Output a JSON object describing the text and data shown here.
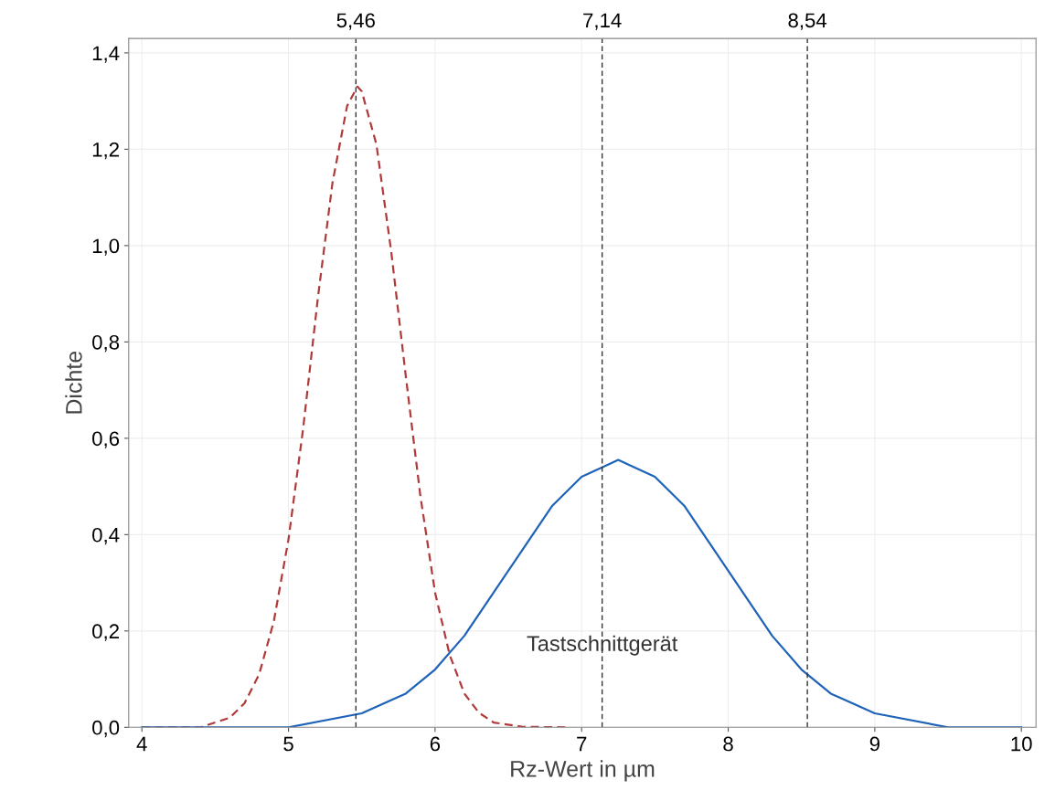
{
  "chart_data": {
    "type": "line",
    "xlabel": "Rz-Wert in µm",
    "ylabel": "Dichte",
    "xlim": [
      3.91,
      10.1
    ],
    "ylim": [
      0,
      1.43
    ],
    "xticks": [
      4,
      5,
      6,
      7,
      8,
      9,
      10
    ],
    "yticks": [
      {
        "value": 0,
        "label": "0,0"
      },
      {
        "value": 0.2,
        "label": "0,2"
      },
      {
        "value": 0.4,
        "label": "0,4"
      },
      {
        "value": 0.6,
        "label": "0,6"
      },
      {
        "value": 0.8,
        "label": "0,8"
      },
      {
        "value": 1.0,
        "label": "1,0"
      },
      {
        "value": 1.2,
        "label": "1,2"
      },
      {
        "value": 1.4,
        "label": "1,4"
      }
    ],
    "grid": true,
    "marker": "none",
    "series": [
      {
        "color": "#b03a3a",
        "line_style": "dashed",
        "x": [
          4.0,
          4.2,
          4.4,
          4.6,
          4.7,
          4.8,
          4.9,
          5.0,
          5.1,
          5.2,
          5.3,
          5.4,
          5.47,
          5.5,
          5.6,
          5.7,
          5.8,
          5.9,
          6.0,
          6.1,
          6.2,
          6.3,
          6.4,
          6.6,
          6.9
        ],
        "values": [
          0.0,
          0.0,
          0.0,
          0.02,
          0.05,
          0.11,
          0.22,
          0.39,
          0.62,
          0.89,
          1.13,
          1.29,
          1.33,
          1.32,
          1.21,
          0.99,
          0.73,
          0.48,
          0.28,
          0.15,
          0.07,
          0.03,
          0.01,
          0.001,
          0.0
        ]
      },
      {
        "color": "#1f63b8",
        "line_style": "solid",
        "x": [
          4.0,
          4.5,
          5.0,
          5.5,
          5.8,
          6.0,
          6.2,
          6.4,
          6.6,
          6.8,
          7.0,
          7.25,
          7.5,
          7.7,
          7.9,
          8.1,
          8.3,
          8.5,
          8.7,
          9.0,
          9.5,
          10.0
        ],
        "values": [
          0.0,
          0.0,
          0.0,
          0.029,
          0.07,
          0.12,
          0.19,
          0.28,
          0.37,
          0.46,
          0.52,
          0.555,
          0.52,
          0.46,
          0.37,
          0.28,
          0.19,
          0.12,
          0.07,
          0.029,
          0.0,
          0.0
        ]
      }
    ],
    "ref_lines": [
      {
        "axis": "x",
        "value": 5.46,
        "label": "5,46",
        "color": "#333333",
        "line_style": "dashed"
      },
      {
        "axis": "x",
        "value": 7.14,
        "label": "7,14",
        "color": "#333333",
        "line_style": "dashed"
      },
      {
        "axis": "x",
        "value": 8.54,
        "label": "8,54",
        "color": "#333333",
        "line_style": "dashed"
      }
    ],
    "annotations": [
      {
        "text": "Tastschnittgerät",
        "x": 7.14,
        "y": 0.17
      }
    ]
  }
}
